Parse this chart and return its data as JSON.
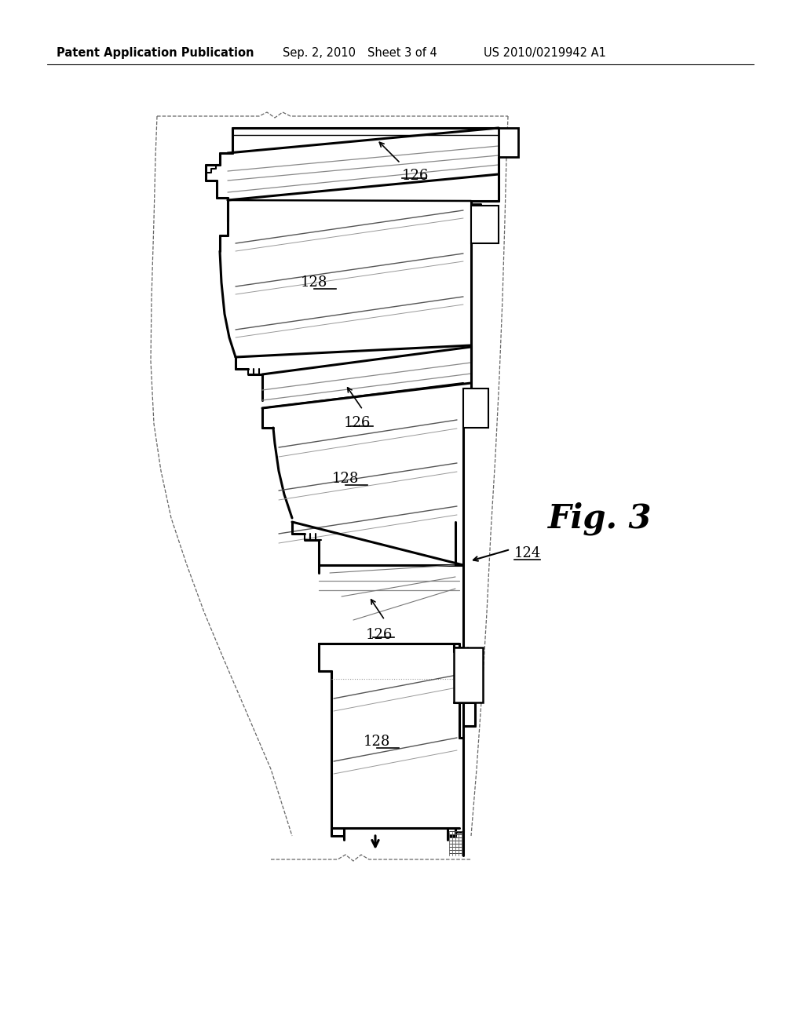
{
  "bg_color": "#ffffff",
  "line_color": "#000000",
  "header_text": "Patent Application Publication",
  "header_date": "Sep. 2, 2010",
  "header_sheet": "Sheet 3 of 4",
  "header_patent": "US 2010/0219942 A1",
  "fig_label": "Fig. 3",
  "label_126_top": "126",
  "label_128_1": "128",
  "label_126_mid": "126",
  "label_128_2": "128",
  "label_126_bot": "126",
  "label_128_3": "128",
  "label_124": "124",
  "title_font_size": 10.5,
  "label_font_size": 13
}
